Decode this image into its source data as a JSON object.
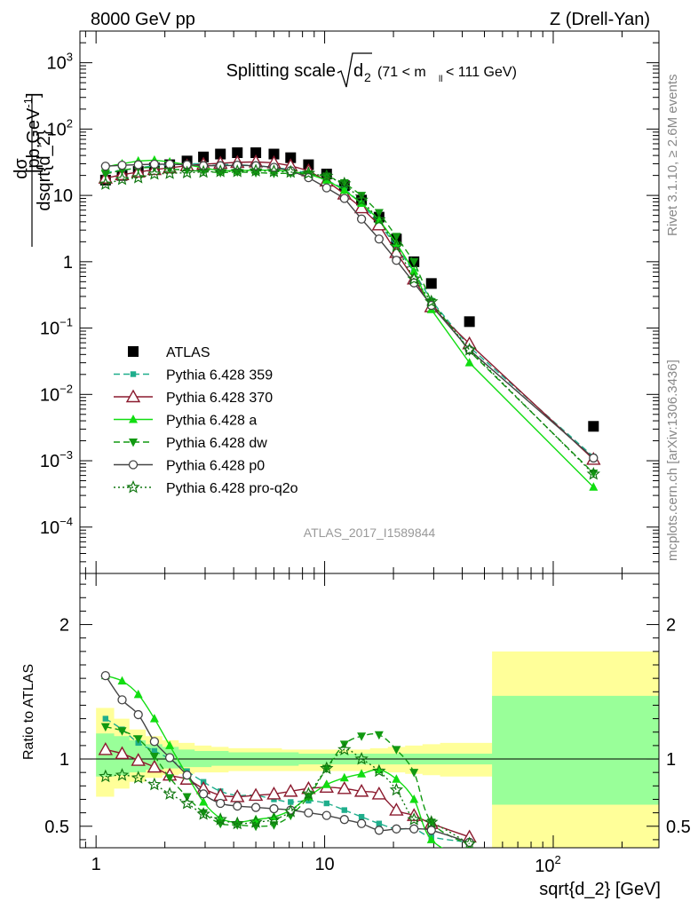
{
  "header": {
    "left": "8000 GeV pp",
    "right": "Z (Drell-Yan)"
  },
  "title": {
    "main": "Splitting scale",
    "sqrt_arg": "d",
    "sqrt_sub": "2",
    "cut_pre": "(71 < m",
    "cut_sub": "ll",
    "cut_post": " < 111 GeV)"
  },
  "ylabel_top": {
    "num": "dσ",
    "den": "dsqrt{d_2}",
    "unit_pre": " [pb,GeV",
    "unit_exp": "-1",
    "unit_post": "]"
  },
  "ylabel_bottom": "Ratio to ATLAS",
  "xlabel": "sqrt{d_2} [GeV]",
  "side_label_top": "Rivet 3.1.10, ≥ 2.6M events",
  "side_label_bottom": "mcplots.cern.ch [arXiv:1306.3436]",
  "watermark": "ATLAS_2017_I1589844",
  "colors": {
    "data": "#000000",
    "p359": "#1fae8c",
    "p370": "#8b1a2e",
    "pa": "#11dd11",
    "pdw": "#119911",
    "pp0": "#444444",
    "pq2o": "#117711",
    "band_outer": "#ffff99",
    "band_inner": "#99ff99"
  },
  "chart_data": [
    {
      "type": "scatter",
      "panel": "main",
      "title": "Splitting scale √d2 (71 < mll < 111 GeV)",
      "xlabel": "sqrt{d_2} [GeV]",
      "ylabel": "dσ/dsqrt{d_2} [pb,GeV^-1]",
      "xscale": "log",
      "yscale": "log",
      "xlim": [
        0.85,
        290
      ],
      "ylim": [
        2e-05,
        3000
      ],
      "x_ticks": [
        {
          "v": 1,
          "label": "1"
        },
        {
          "v": 10,
          "label": "10"
        }
      ],
      "x_ticks_pow": [
        {
          "v": 100,
          "base": "10",
          "exp": "2"
        }
      ],
      "y_ticks": [
        {
          "v": 1000,
          "base": "10",
          "exp": "3"
        },
        {
          "v": 100,
          "base": "10",
          "exp": "2"
        },
        {
          "v": 10,
          "label": "10"
        },
        {
          "v": 1,
          "label": "1"
        },
        {
          "v": 0.1,
          "base": "10",
          "exp": "−1"
        },
        {
          "v": 0.01,
          "base": "10",
          "exp": "−2"
        },
        {
          "v": 0.001,
          "base": "10",
          "exp": "−3"
        },
        {
          "v": 0.0001,
          "base": "10",
          "exp": "−4"
        }
      ],
      "legend_position": "bottom-left",
      "x": [
        1.1,
        1.3,
        1.53,
        1.8,
        2.1,
        2.5,
        2.95,
        3.5,
        4.15,
        5.0,
        6.0,
        7.1,
        8.5,
        10.2,
        12.2,
        14.5,
        17.3,
        20.6,
        24.6,
        29.3,
        43,
        150
      ],
      "series": [
        {
          "key": "atlas",
          "name": "ATLAS",
          "color_key": "data",
          "marker": "square",
          "line": "none",
          "values": [
            17,
            20,
            23,
            26,
            29,
            33,
            38,
            42,
            44,
            44,
            42,
            37,
            29,
            21,
            14,
            8.5,
            4.7,
            2.2,
            1.0,
            0.47,
            0.125,
            0.0033
          ]
        },
        {
          "key": "p359",
          "name": "Pythia 6.428 359",
          "color_key": "p359",
          "marker": "square-small",
          "line": "dashed",
          "values": [
            22,
            24,
            26,
            28,
            29,
            30,
            30,
            29.5,
            29,
            28,
            26.5,
            24.5,
            21.5,
            17,
            12.5,
            7.6,
            3.8,
            1.7,
            0.7,
            0.26,
            0.052,
            0.00115
          ]
        },
        {
          "key": "p370",
          "name": "Pythia 6.428 370",
          "color_key": "p370",
          "marker": "triangle-open",
          "line": "solid",
          "values": [
            18.2,
            20.5,
            22.5,
            24.5,
            26,
            28,
            29.5,
            30.5,
            31.5,
            32,
            31,
            28,
            23.5,
            16.5,
            10.5,
            6.5,
            3.6,
            1.38,
            0.55,
            0.21,
            0.058,
            0.00105
          ]
        },
        {
          "key": "pa",
          "name": "Pythia 6.428 a",
          "color_key": "pa",
          "marker": "triangle",
          "line": "solid",
          "values": [
            27,
            30,
            33,
            34,
            32,
            29,
            26,
            23.5,
            23.5,
            24,
            24,
            23,
            21,
            17,
            12,
            7.6,
            4.3,
            1.9,
            0.72,
            0.19,
            0.03,
            0.0004
          ]
        },
        {
          "key": "pdw",
          "name": "Pythia 6.428 dw",
          "color_key": "pdw",
          "marker": "triangle-down",
          "line": "dashed",
          "values": [
            21,
            24,
            26,
            26.5,
            25,
            24,
            23,
            22,
            22.5,
            22,
            21.5,
            21.5,
            21,
            19.5,
            15.5,
            10,
            5.5,
            2.4,
            1.0,
            0.25,
            0.045,
            0.00065
          ]
        },
        {
          "key": "pp0",
          "name": "Pythia 6.428 p0",
          "color_key": "pp0",
          "marker": "circle-open",
          "line": "solid",
          "values": [
            27.5,
            28.5,
            29,
            29.5,
            29.5,
            29,
            28,
            28,
            28.5,
            28,
            26.5,
            23.5,
            18.5,
            13,
            9,
            4.4,
            2.2,
            1.05,
            0.48,
            0.22,
            0.047,
            0.0011
          ]
        },
        {
          "key": "pq2o",
          "name": "Pythia 6.428 pro-q2o",
          "color_key": "pq2o",
          "marker": "star-open",
          "line": "dotted",
          "values": [
            14.8,
            17.5,
            18.5,
            21,
            21.5,
            22,
            22.5,
            23,
            23,
            23.5,
            23,
            22.5,
            21.5,
            19.5,
            15,
            8.5,
            4.3,
            1.7,
            0.55,
            0.25,
            0.047,
            0.00063
          ]
        }
      ]
    },
    {
      "type": "line",
      "panel": "ratio",
      "ylabel": "Ratio to ATLAS",
      "xlabel": "sqrt{d_2} [GeV]",
      "xscale": "log",
      "xlim": [
        0.85,
        290
      ],
      "ylim": [
        0.34,
        2.38
      ],
      "y_ticks": [
        0.5,
        1,
        2
      ],
      "x_ticks": [
        {
          "v": 1,
          "label": "1"
        },
        {
          "v": 10,
          "label": "10"
        }
      ],
      "x_ticks_pow": [
        {
          "v": 100,
          "base": "10",
          "exp": "2"
        }
      ],
      "bin_edges": [
        1.0,
        1.2,
        1.4,
        1.65,
        1.95,
        2.3,
        2.7,
        3.2,
        3.8,
        4.5,
        5.5,
        6.5,
        7.7,
        9.3,
        11.1,
        13.3,
        15.8,
        18.9,
        22.5,
        26.8,
        32,
        54,
        290
      ],
      "band_outer": {
        "lo": [
          0.72,
          0.78,
          0.83,
          0.86,
          0.88,
          0.89,
          0.9,
          0.9,
          0.91,
          0.91,
          0.91,
          0.91,
          0.91,
          0.91,
          0.91,
          0.91,
          0.91,
          0.9,
          0.89,
          0.88,
          0.87,
          0.34
        ],
        "hi": [
          1.38,
          1.3,
          1.22,
          1.17,
          1.14,
          1.12,
          1.1,
          1.09,
          1.08,
          1.08,
          1.08,
          1.07,
          1.07,
          1.07,
          1.07,
          1.07,
          1.08,
          1.09,
          1.1,
          1.11,
          1.12,
          1.8
        ]
      },
      "band_inner": {
        "lo": [
          0.87,
          0.88,
          0.9,
          0.92,
          0.93,
          0.94,
          0.94,
          0.95,
          0.95,
          0.95,
          0.95,
          0.95,
          0.96,
          0.96,
          0.96,
          0.96,
          0.96,
          0.96,
          0.96,
          0.96,
          0.96,
          0.66
        ],
        "hi": [
          1.19,
          1.17,
          1.14,
          1.11,
          1.09,
          1.07,
          1.06,
          1.06,
          1.05,
          1.05,
          1.05,
          1.05,
          1.04,
          1.04,
          1.04,
          1.04,
          1.04,
          1.04,
          1.04,
          1.04,
          1.04,
          1.47
        ]
      },
      "x": [
        1.1,
        1.3,
        1.53,
        1.8,
        2.1,
        2.5,
        2.95,
        3.5,
        4.15,
        5.0,
        6.0,
        7.1,
        8.5,
        10.2,
        12.2,
        14.5,
        17.3,
        20.6,
        24.6,
        29.3,
        43
      ],
      "series": [
        {
          "key": "p359",
          "name": "Pythia 6.428 359",
          "color_key": "p359",
          "marker": "square-small",
          "line": "dashed",
          "values": [
            1.3,
            1.22,
            1.12,
            1.06,
            1.0,
            0.91,
            0.83,
            0.76,
            0.73,
            0.73,
            0.7,
            0.68,
            0.69,
            0.67,
            0.62,
            0.57,
            0.52,
            0.48,
            0.48,
            0.42,
            0.38
          ]
        },
        {
          "key": "p370",
          "name": "Pythia 6.428 370",
          "color_key": "p370",
          "marker": "triangle-open",
          "line": "solid",
          "values": [
            1.07,
            1.04,
            0.99,
            0.94,
            0.88,
            0.85,
            0.78,
            0.73,
            0.72,
            0.73,
            0.74,
            0.76,
            0.78,
            0.79,
            0.78,
            0.76,
            0.74,
            0.62,
            0.58,
            0.52,
            0.42
          ]
        },
        {
          "key": "pa",
          "name": "Pythia 6.428 a",
          "color_key": "pa",
          "marker": "triangle",
          "line": "solid",
          "values": [
            1.62,
            1.58,
            1.48,
            1.3,
            1.1,
            0.88,
            0.68,
            0.56,
            0.53,
            0.55,
            0.57,
            0.62,
            0.72,
            0.81,
            0.86,
            0.89,
            0.92,
            0.85,
            0.7,
            0.4,
            0.24
          ]
        },
        {
          "key": "pdw",
          "name": "Pythia 6.428 dw",
          "color_key": "pdw",
          "marker": "triangle-down",
          "line": "dashed",
          "values": [
            1.24,
            1.21,
            1.15,
            1.02,
            0.86,
            0.72,
            0.6,
            0.52,
            0.51,
            0.5,
            0.51,
            0.58,
            0.72,
            0.93,
            1.11,
            1.17,
            1.18,
            1.07,
            0.9,
            0.53,
            0.36
          ]
        },
        {
          "key": "pp0",
          "name": "Pythia 6.428 p0",
          "color_key": "pp0",
          "marker": "circle-open",
          "line": "solid",
          "values": [
            1.62,
            1.44,
            1.33,
            1.13,
            1.01,
            0.88,
            0.74,
            0.67,
            0.65,
            0.64,
            0.63,
            0.62,
            0.6,
            0.58,
            0.55,
            0.52,
            0.47,
            0.48,
            0.48,
            0.47,
            0.38
          ]
        },
        {
          "key": "pq2o",
          "name": "Pythia 6.428 pro-q2o",
          "color_key": "pq2o",
          "marker": "star-open",
          "line": "dotted",
          "values": [
            0.87,
            0.88,
            0.86,
            0.81,
            0.74,
            0.67,
            0.59,
            0.55,
            0.52,
            0.53,
            0.55,
            0.61,
            0.74,
            0.93,
            1.07,
            1.0,
            0.91,
            0.77,
            0.55,
            0.53,
            0.37
          ]
        }
      ]
    }
  ]
}
